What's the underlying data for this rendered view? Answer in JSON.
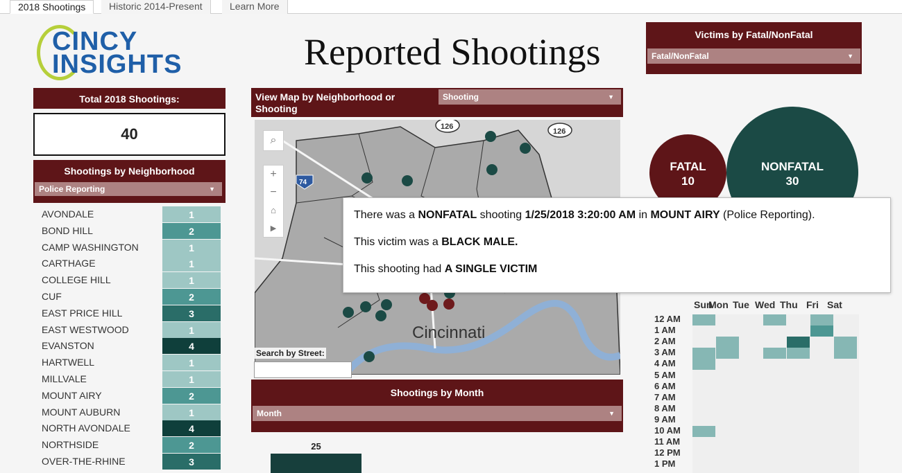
{
  "tabs": [
    "2018 Shootings",
    "Historic 2014-Present",
    "Learn More"
  ],
  "logo": {
    "line1": "CINCY",
    "line2": "INSIGHTS"
  },
  "title": "Reported Shootings",
  "total": {
    "label": "Total 2018 Shootings:",
    "value": "40"
  },
  "neighborhood_panel": {
    "title": "Shootings by Neighborhood",
    "dropdown": "Police Reporting"
  },
  "neighborhoods": [
    {
      "name": "AVONDALE",
      "count": "1"
    },
    {
      "name": "BOND HILL",
      "count": "2"
    },
    {
      "name": "CAMP WASHINGTON",
      "count": "1"
    },
    {
      "name": "CARTHAGE",
      "count": "1"
    },
    {
      "name": "COLLEGE HILL",
      "count": "1"
    },
    {
      "name": "CUF",
      "count": "2"
    },
    {
      "name": "EAST PRICE HILL",
      "count": "3"
    },
    {
      "name": "EAST WESTWOOD",
      "count": "1"
    },
    {
      "name": "EVANSTON",
      "count": "4"
    },
    {
      "name": "HARTWELL",
      "count": "1"
    },
    {
      "name": "MILLVALE",
      "count": "1"
    },
    {
      "name": "MOUNT AIRY",
      "count": "2"
    },
    {
      "name": "MOUNT AUBURN",
      "count": "1"
    },
    {
      "name": "NORTH AVONDALE",
      "count": "4"
    },
    {
      "name": "NORTHSIDE",
      "count": "2"
    },
    {
      "name": "OVER-THE-RHINE",
      "count": "3"
    }
  ],
  "count_colors": {
    "1": "#9ec7c4",
    "2": "#4d9793",
    "3": "#2a6d68",
    "4": "#0f3f3b"
  },
  "map_panel": {
    "title": "View Map by Neighborhood or Shooting",
    "dropdown": "Shooting",
    "city_label": "Cincinnati",
    "route_126a": "126",
    "route_126b": "126",
    "route_74": "74",
    "search_label": "Search by Street:",
    "search_value": ""
  },
  "victims_panel": {
    "title": "Victims by Fatal/NonFatal",
    "dropdown": "Fatal/NonFatal"
  },
  "fatal": {
    "label": "FATAL",
    "value": "10",
    "color": "#5e1518"
  },
  "nonfatal": {
    "label": "NONFATAL",
    "value": "30",
    "color": "#1b4a45"
  },
  "tooltip": {
    "l1_a": "There was a ",
    "l1_b": "NONFATAL",
    "l1_c": " shooting ",
    "l1_d": "1/25/2018 3:20:00 AM",
    "l1_e": " in ",
    "l1_f": "MOUNT AIRY",
    "l1_g": " (Police Reporting).",
    "l2_a": "This victim was a ",
    "l2_b": "BLACK  MALE.",
    "l3_a": "This shooting had ",
    "l3_b": "A SINGLE VICTIM"
  },
  "month_panel": {
    "title": "Shootings by Month",
    "dropdown": "Month",
    "bar_label": "25"
  },
  "heatmap": {
    "days": [
      "Sun",
      "Mon",
      "Tue",
      "Wed",
      "Thu",
      "Fri",
      "Sat"
    ],
    "hours": [
      "12 AM",
      "1 AM",
      "2 AM",
      "3 AM",
      "4 AM",
      "5 AM",
      "6 AM",
      "7 AM",
      "8 AM",
      "9 AM",
      "10 AM",
      "11 AM",
      "12 PM",
      "1 PM"
    ],
    "cells": [
      {
        "hour": 0,
        "day": 0,
        "level": 1
      },
      {
        "hour": 0,
        "day": 3,
        "level": 1
      },
      {
        "hour": 0,
        "day": 5,
        "level": 1
      },
      {
        "hour": 1,
        "day": 5,
        "level": 2
      },
      {
        "hour": 2,
        "day": 1,
        "level": 1
      },
      {
        "hour": 2,
        "day": 4,
        "level": 3
      },
      {
        "hour": 2,
        "day": 6,
        "level": 1
      },
      {
        "hour": 3,
        "day": 0,
        "level": 1
      },
      {
        "hour": 3,
        "day": 1,
        "level": 1
      },
      {
        "hour": 3,
        "day": 3,
        "level": 1
      },
      {
        "hour": 3,
        "day": 4,
        "level": 1
      },
      {
        "hour": 3,
        "day": 6,
        "level": 1
      },
      {
        "hour": 4,
        "day": 0,
        "level": 1
      },
      {
        "hour": 10,
        "day": 0,
        "level": 1
      }
    ],
    "level_colors": {
      "1": "#86b7b4",
      "2": "#4d9793",
      "3": "#2a6d68"
    }
  }
}
